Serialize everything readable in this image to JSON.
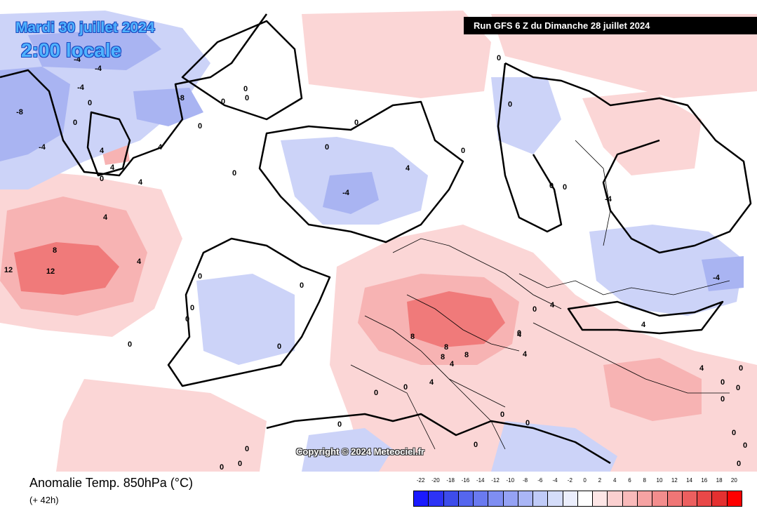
{
  "header": {
    "date": "Mardi 30 juillet 2024",
    "time": "2:00 locale",
    "run": "Run GFS 6 Z du Dimanche 28 juillet 2024"
  },
  "copyright": "Copyright © 2024 Meteociel.fr",
  "footer": {
    "parameter": "Anomalie Temp. 850hPa (°C)",
    "lead_time": "(+ 42h)"
  },
  "legend": {
    "labels": [
      "-22",
      "-20",
      "-18",
      "-16",
      "-14",
      "-12",
      "-10",
      "-8",
      "-6",
      "-4",
      "-2",
      "0",
      "2",
      "4",
      "6",
      "8",
      "10",
      "12",
      "14",
      "16",
      "18",
      "20"
    ],
    "colors": [
      "#1a1aff",
      "#2d33f5",
      "#3d4ceb",
      "#5566ee",
      "#6a7af0",
      "#7f8ef2",
      "#95a2f4",
      "#aab6f6",
      "#c0cbf8",
      "#d5ddfa",
      "#ebeefc",
      "#ffffff",
      "#fde6e6",
      "#fbd0d0",
      "#f9baba",
      "#f6a3a3",
      "#f38d8d",
      "#f07676",
      "#ec5f5f",
      "#e84848",
      "#e43030",
      "#ff0000"
    ]
  },
  "contour_labels": [
    "-8",
    "-4",
    "-4",
    "-4",
    "-4",
    "-8",
    "0",
    "0",
    "4",
    "4",
    "4",
    "0",
    "0",
    "0",
    "0",
    "0",
    "0",
    "-4",
    "0",
    "0",
    "4",
    "4",
    "8",
    "12",
    "12",
    "4",
    "0",
    "0",
    "0",
    "0",
    "0",
    "0",
    "8",
    "8",
    "8",
    "8",
    "4",
    "4",
    "4",
    "4",
    "0",
    "0",
    "0",
    "0",
    "0",
    "0",
    "0",
    "0",
    "0",
    "0",
    "0",
    "0",
    "-4",
    "4",
    "4",
    "0",
    "0",
    "-4",
    "0",
    "4",
    "0",
    "4",
    "0",
    "0",
    "0",
    "0",
    "0",
    "0",
    "0"
  ],
  "colors": {
    "cold": "#c8cff8",
    "cold_strong": "#9aa8f0",
    "warm": "#fbd3d3",
    "warm_mid": "#f5a9a9",
    "warm_strong": "#f07070"
  }
}
